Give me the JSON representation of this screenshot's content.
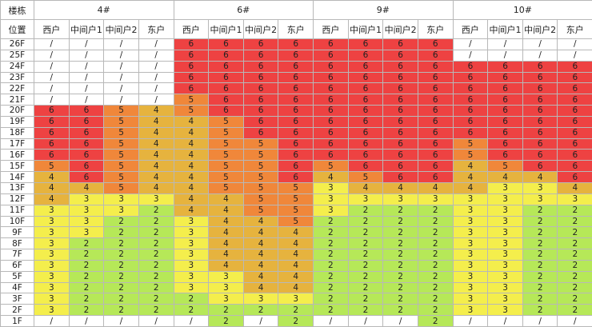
{
  "header": {
    "corner_top": "楼栋",
    "corner_bottom": "位置",
    "buildings": [
      {
        "name": "4#",
        "units": [
          "西户",
          "中间户1",
          "中间户2",
          "东户"
        ]
      },
      {
        "name": "6#",
        "units": [
          "西户",
          "中间户1",
          "中间户2",
          "东户"
        ]
      },
      {
        "name": "9#",
        "units": [
          "西户",
          "中间户1",
          "中间户2",
          "东户"
        ]
      },
      {
        "name": "10#",
        "units": [
          "西户",
          "中间户1",
          "中间户2",
          "东户"
        ]
      }
    ]
  },
  "colors": {
    "2": "#b6e858",
    "3": "#f4ee4c",
    "4": "#e6b33e",
    "5": "#f0873a",
    "6": "#ee4242"
  },
  "table": {
    "rows": [
      {
        "floor": "26F",
        "cells": [
          "/",
          "/",
          "/",
          "/",
          6,
          6,
          6,
          6,
          6,
          6,
          6,
          6,
          "/",
          "/",
          "/",
          "/"
        ]
      },
      {
        "floor": "25F",
        "cells": [
          "/",
          "/",
          "/",
          "/",
          6,
          6,
          6,
          6,
          6,
          6,
          6,
          6,
          "/",
          "/",
          "/",
          "/"
        ]
      },
      {
        "floor": "24F",
        "cells": [
          "/",
          "/",
          "/",
          "/",
          6,
          6,
          6,
          6,
          6,
          6,
          6,
          6,
          6,
          6,
          6,
          6
        ]
      },
      {
        "floor": "23F",
        "cells": [
          "/",
          "/",
          "/",
          "/",
          6,
          6,
          6,
          6,
          6,
          6,
          6,
          6,
          6,
          6,
          6,
          6
        ]
      },
      {
        "floor": "22F",
        "cells": [
          "/",
          "/",
          "/",
          "/",
          6,
          6,
          6,
          6,
          6,
          6,
          6,
          6,
          6,
          6,
          6,
          6
        ]
      },
      {
        "floor": "21F",
        "cells": [
          "/",
          "/",
          "/",
          "/",
          5,
          6,
          6,
          6,
          6,
          6,
          6,
          6,
          6,
          6,
          6,
          6
        ]
      },
      {
        "floor": "20F",
        "cells": [
          6,
          6,
          5,
          4,
          5,
          6,
          6,
          6,
          6,
          6,
          6,
          6,
          6,
          6,
          6,
          6
        ]
      },
      {
        "floor": "19F",
        "cells": [
          6,
          6,
          5,
          4,
          4,
          5,
          6,
          6,
          6,
          6,
          6,
          6,
          6,
          6,
          6,
          6
        ]
      },
      {
        "floor": "18F",
        "cells": [
          6,
          6,
          5,
          4,
          4,
          5,
          6,
          6,
          6,
          6,
          6,
          6,
          6,
          6,
          6,
          6
        ]
      },
      {
        "floor": "17F",
        "cells": [
          6,
          6,
          5,
          4,
          4,
          5,
          5,
          6,
          6,
          6,
          6,
          6,
          5,
          6,
          6,
          6
        ]
      },
      {
        "floor": "16F",
        "cells": [
          6,
          6,
          5,
          4,
          4,
          5,
          5,
          6,
          6,
          6,
          6,
          6,
          5,
          6,
          6,
          6
        ]
      },
      {
        "floor": "15F",
        "cells": [
          5,
          6,
          5,
          4,
          4,
          5,
          5,
          6,
          5,
          6,
          6,
          6,
          4,
          5,
          6,
          6
        ]
      },
      {
        "floor": "14F",
        "cells": [
          4,
          6,
          5,
          4,
          4,
          5,
          5,
          6,
          4,
          5,
          6,
          6,
          4,
          4,
          4,
          6
        ]
      },
      {
        "floor": "13F",
        "cells": [
          4,
          4,
          5,
          4,
          4,
          5,
          5,
          5,
          3,
          4,
          4,
          4,
          4,
          3,
          3,
          4
        ]
      },
      {
        "floor": "12F",
        "cells": [
          4,
          3,
          3,
          3,
          4,
          4,
          5,
          5,
          3,
          3,
          3,
          3,
          3,
          3,
          3,
          3
        ]
      },
      {
        "floor": "11F",
        "cells": [
          3,
          3,
          3,
          2,
          4,
          4,
          5,
          5,
          3,
          2,
          2,
          2,
          3,
          3,
          2,
          2
        ]
      },
      {
        "floor": "10F",
        "cells": [
          3,
          3,
          2,
          2,
          3,
          4,
          4,
          5,
          2,
          2,
          2,
          2,
          3,
          3,
          2,
          2
        ]
      },
      {
        "floor": "9F",
        "cells": [
          3,
          3,
          2,
          2,
          3,
          4,
          4,
          4,
          2,
          2,
          2,
          2,
          3,
          3,
          2,
          2
        ]
      },
      {
        "floor": "8F",
        "cells": [
          3,
          2,
          2,
          2,
          3,
          4,
          4,
          4,
          2,
          2,
          2,
          2,
          3,
          3,
          2,
          2
        ]
      },
      {
        "floor": "7F",
        "cells": [
          3,
          2,
          2,
          2,
          3,
          4,
          4,
          4,
          2,
          2,
          2,
          2,
          3,
          3,
          2,
          2
        ]
      },
      {
        "floor": "6F",
        "cells": [
          3,
          2,
          2,
          2,
          3,
          4,
          4,
          4,
          2,
          2,
          2,
          2,
          3,
          3,
          2,
          2
        ]
      },
      {
        "floor": "5F",
        "cells": [
          3,
          2,
          2,
          2,
          3,
          3,
          4,
          4,
          2,
          2,
          2,
          2,
          3,
          3,
          2,
          2
        ]
      },
      {
        "floor": "4F",
        "cells": [
          3,
          2,
          2,
          2,
          3,
          3,
          4,
          4,
          2,
          2,
          2,
          2,
          3,
          3,
          2,
          2
        ]
      },
      {
        "floor": "3F",
        "cells": [
          3,
          2,
          2,
          2,
          2,
          3,
          3,
          3,
          2,
          2,
          2,
          2,
          3,
          3,
          2,
          2
        ]
      },
      {
        "floor": "2F",
        "cells": [
          3,
          2,
          2,
          2,
          2,
          2,
          2,
          2,
          2,
          2,
          2,
          2,
          3,
          3,
          2,
          2
        ]
      },
      {
        "floor": "1F",
        "cells": [
          "/",
          "/",
          "/",
          "/",
          "/",
          2,
          "/",
          2,
          "/",
          "/",
          "/",
          2,
          "/",
          "/",
          "/",
          "/"
        ]
      }
    ]
  }
}
